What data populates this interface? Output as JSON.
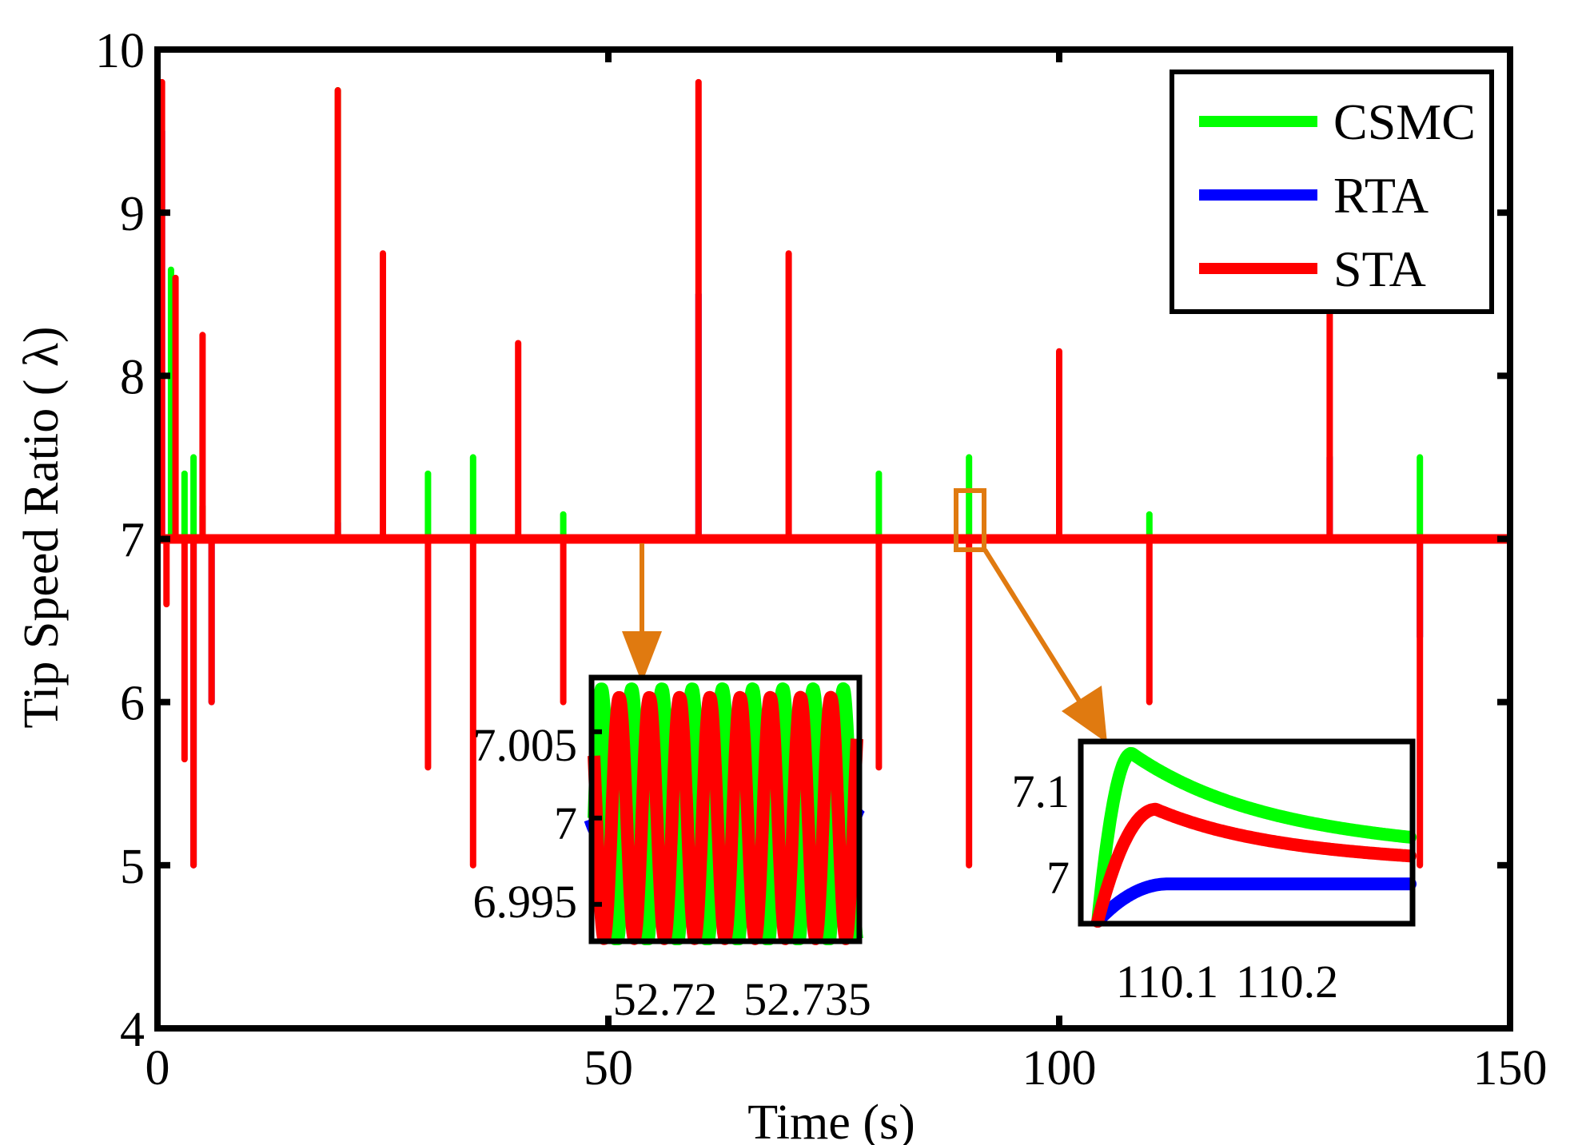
{
  "chart_data": [
    {
      "type": "line",
      "title": "",
      "xlabel": "Time (s)",
      "ylabel": "Tip Speed Ratio ( λ)",
      "xlim": [
        0,
        150
      ],
      "ylim": [
        4,
        10
      ],
      "x_ticks": [
        "0",
        "50",
        "100",
        "150"
      ],
      "y_ticks": [
        "4",
        "5",
        "6",
        "7",
        "8",
        "9",
        "10"
      ],
      "grid": false,
      "legend_position": "top-right",
      "baseline": 7,
      "series": [
        {
          "name": "CSMC",
          "color": "#00ff00",
          "events": [
            {
              "t": 0.3,
              "up": 9.8
            },
            {
              "t": 1.5,
              "up": 8.65
            },
            {
              "t": 3.0,
              "up": 7.4
            },
            {
              "t": 4.0,
              "up": 7.5
            },
            {
              "t": 5.0,
              "up": 7.2
            },
            {
              "t": 20,
              "up": 9.75
            },
            {
              "t": 30,
              "up": 7.4
            },
            {
              "t": 35,
              "up": 7.5
            },
            {
              "t": 45,
              "up": 7.15
            },
            {
              "t": 80,
              "up": 7.4
            },
            {
              "t": 90,
              "up": 7.5
            },
            {
              "t": 110,
              "up": 7.15
            },
            {
              "t": 130,
              "up": 7.0
            },
            {
              "t": 140,
              "up": 7.5
            }
          ]
        },
        {
          "name": "RTA",
          "color": "#0000ff",
          "events": [
            {
              "t": 0.5,
              "up": 9.5
            },
            {
              "t": 4.0,
              "down": 5.0
            },
            {
              "t": 6.0,
              "down": 6.0
            },
            {
              "t": 20,
              "up": 7.1
            },
            {
              "t": 25,
              "up": 7.4
            },
            {
              "t": 60,
              "up": 8.5
            },
            {
              "t": 130,
              "up": 7.5
            },
            {
              "t": 140,
              "down": 6.4
            }
          ]
        },
        {
          "name": "STA",
          "color": "#ff0000",
          "events": [
            {
              "t": 0.5,
              "up": 9.8
            },
            {
              "t": 1.0,
              "down": 6.6
            },
            {
              "t": 2.0,
              "up": 8.6
            },
            {
              "t": 3.0,
              "down": 5.65
            },
            {
              "t": 4.0,
              "down": 5.0
            },
            {
              "t": 5.0,
              "up": 8.25
            },
            {
              "t": 6.0,
              "down": 6.0
            },
            {
              "t": 20,
              "up": 9.75
            },
            {
              "t": 25,
              "up": 8.75
            },
            {
              "t": 30,
              "down": 5.6
            },
            {
              "t": 35,
              "down": 5.0
            },
            {
              "t": 40,
              "up": 8.2
            },
            {
              "t": 45,
              "down": 6.0
            },
            {
              "t": 60,
              "up": 9.8
            },
            {
              "t": 70,
              "up": 8.75
            },
            {
              "t": 80,
              "down": 5.6
            },
            {
              "t": 90,
              "down": 5.0
            },
            {
              "t": 100,
              "up": 8.15
            },
            {
              "t": 110,
              "down": 6.0
            },
            {
              "t": 130,
              "up": 8.4
            },
            {
              "t": 140,
              "down": 5.0
            }
          ]
        }
      ]
    },
    {
      "type": "line",
      "title": "",
      "xlim": [
        52.713,
        52.742
      ],
      "ylim": [
        6.993,
        7.008
      ],
      "x_ticks": [
        "52.72",
        "52.735"
      ],
      "x_tick_values": [
        52.72,
        52.735
      ],
      "y_ticks": [
        "7.005",
        "7",
        "6.995"
      ],
      "y_tick_values": [
        7.005,
        7.0,
        6.995
      ],
      "zoom_of_time": 53.5,
      "series": [
        {
          "name": "CSMC",
          "color": "#00ff00",
          "center": 7.0,
          "amplitude": 0.0075,
          "cycles": 8.7,
          "phase": 0.0
        },
        {
          "name": "RTA",
          "color": "#0000ff",
          "center": 7.0,
          "amplitude": 0.0008,
          "cycles": 8.7,
          "phase": 3.14
        },
        {
          "name": "STA",
          "color": "#ff0000",
          "center": 7.0,
          "amplitude": 0.007,
          "cycles": 8.7,
          "phase": 2.6
        }
      ]
    },
    {
      "type": "line",
      "title": "",
      "xlim": [
        110.0,
        110.27
      ],
      "ylim": [
        6.96,
        7.15
      ],
      "x_ticks": [
        "110.1",
        "110.2"
      ],
      "x_tick_values": [
        110.1,
        110.2
      ],
      "y_ticks": [
        "7.1",
        "7"
      ],
      "y_tick_values": [
        7.1,
        7.0
      ],
      "zoom_of_time": 90.5,
      "series": [
        {
          "name": "CSMC",
          "color": "#00ff00",
          "start": 6.96,
          "rise_end": 110.04,
          "peak": 7.14,
          "end": 7.05
        },
        {
          "name": "RTA",
          "color": "#0000ff",
          "start": 6.96,
          "rise_end": 110.07,
          "peak": 7.0,
          "end": 7.0
        },
        {
          "name": "STA",
          "color": "#ff0000",
          "start": 6.96,
          "rise_end": 110.06,
          "peak": 7.08,
          "end": 7.03
        }
      ]
    }
  ]
}
